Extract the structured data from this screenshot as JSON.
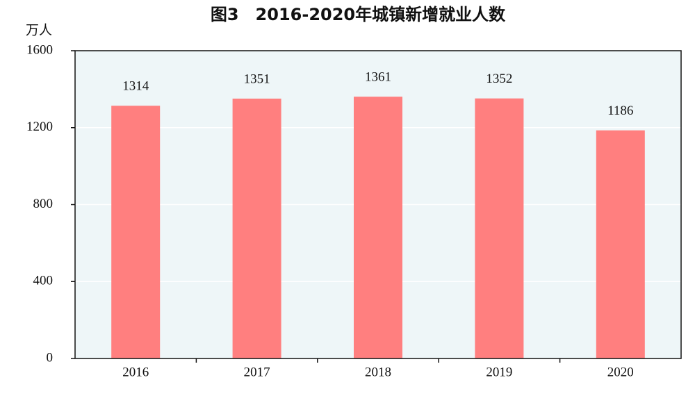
{
  "chart_data": {
    "type": "bar",
    "title": "图3　2016-2020年城镇新增就业人数",
    "y_label": "万人",
    "categories": [
      "2016",
      "2017",
      "2018",
      "2019",
      "2020"
    ],
    "values": [
      1314,
      1351,
      1361,
      1352,
      1186
    ],
    "color": "#ff7f7f",
    "background": "#eef6f8",
    "ylim": [
      0,
      1600
    ],
    "yticks": [
      0,
      400,
      800,
      1200,
      1600
    ],
    "grid": true
  }
}
